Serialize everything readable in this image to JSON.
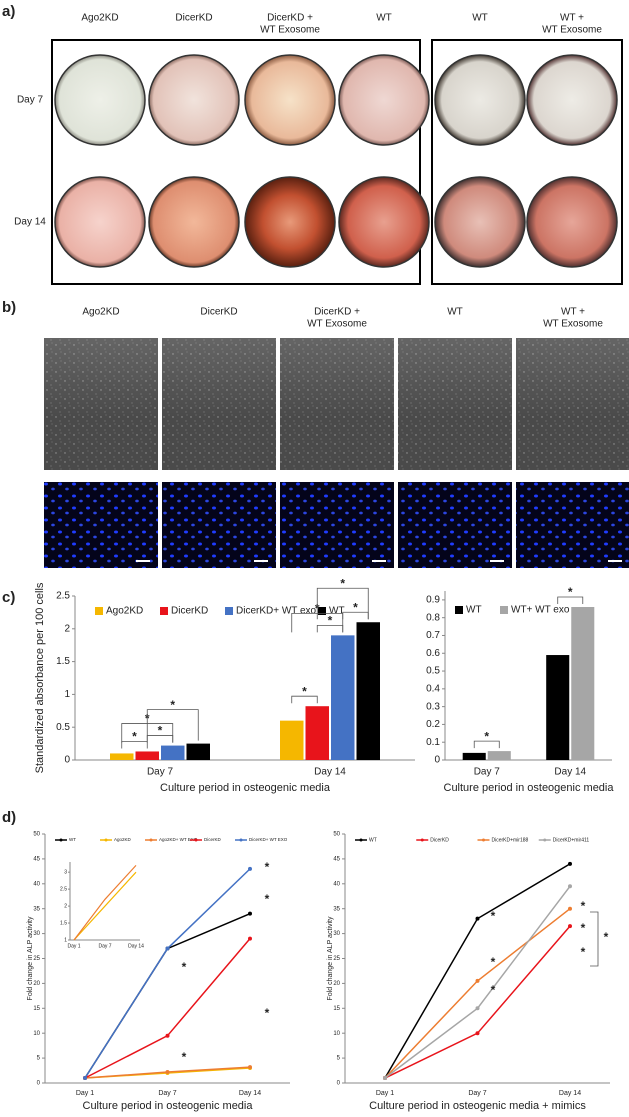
{
  "figure": {
    "a": {
      "label": "a)",
      "groups": [
        {
          "columns": [
            [
              "Ago2KD"
            ],
            [
              "DicerKD"
            ],
            [
              "DicerKD +",
              "WT Exosome"
            ],
            [
              "WT"
            ]
          ]
        },
        {
          "columns": [
            [
              "WT"
            ],
            [
              "WT +",
              "WT Exosome"
            ]
          ]
        }
      ],
      "rows": [
        "Day 7",
        "Day 14"
      ]
    },
    "b": {
      "label": "b)",
      "columns": [
        [
          "Ago2KD"
        ],
        [
          "DicerKD"
        ],
        [
          "DicerKD +",
          "WT Exosome"
        ],
        [
          "WT"
        ],
        [
          "WT +",
          "WT Exosome"
        ]
      ]
    },
    "c": {
      "label": "c)"
    },
    "d": {
      "label": "d)"
    }
  },
  "chart_data": [
    {
      "type": "bar",
      "ylabel": "Standardized absorbance per 100 cells",
      "xlabel": "Culture period in osteogenic media",
      "categories": [
        "Day 7",
        "Day 14"
      ],
      "series": [
        {
          "name": "Ago2KD",
          "color": "#f5b700",
          "values": [
            0.1,
            0.6
          ]
        },
        {
          "name": "DicerKD",
          "color": "#e8141b",
          "values": [
            0.13,
            0.82
          ]
        },
        {
          "name": "DicerKD+ WT exo",
          "color": "#4472c4",
          "values": [
            0.22,
            1.9
          ]
        },
        {
          "name": "WT",
          "color": "#000000",
          "values": [
            0.25,
            2.1
          ]
        }
      ],
      "ylim": [
        0,
        2.5
      ],
      "yticks": [
        0,
        0.5,
        1,
        1.5,
        2,
        2.5
      ],
      "significance": "*"
    },
    {
      "type": "bar",
      "xlabel": "Culture period in osteogenic media",
      "categories": [
        "Day 7",
        "Day 14"
      ],
      "series": [
        {
          "name": "WT",
          "color": "#000000",
          "values": [
            0.04,
            0.59
          ]
        },
        {
          "name": "WT+ WT exo",
          "color": "#a6a6a6",
          "values": [
            0.05,
            0.86
          ]
        }
      ],
      "ylim": [
        0,
        0.95
      ],
      "yticks": [
        0,
        0.1,
        0.2,
        0.3,
        0.4,
        0.5,
        0.6,
        0.7,
        0.8,
        0.9
      ],
      "significance": "*"
    },
    {
      "type": "line",
      "ylabel": "Fold change in ALP activity",
      "xlabel": "Culture period in osteogenic media",
      "categories": [
        "Day 1",
        "Day 7",
        "Day 14"
      ],
      "series": [
        {
          "name": "WT",
          "color": "#000000",
          "values": [
            1,
            27,
            34
          ]
        },
        {
          "name": "Ago2KD",
          "color": "#f5b700",
          "values": [
            1,
            2,
            3
          ]
        },
        {
          "name": "Ago2KD+ WT EXO",
          "color": "#ed7d31",
          "values": [
            1,
            2.2,
            3.2
          ]
        },
        {
          "name": "DicerKD",
          "color": "#e8141b",
          "values": [
            1,
            9.5,
            29
          ]
        },
        {
          "name": "DicerKD+ WT EXO",
          "color": "#4472c4",
          "values": [
            1,
            27,
            43
          ]
        }
      ],
      "ylim": [
        0,
        50
      ],
      "yticks": [
        0,
        5,
        10,
        15,
        20,
        25,
        30,
        35,
        40,
        45,
        50
      ],
      "inset": {
        "ylim": [
          1,
          3.3
        ],
        "yticks": [
          1,
          1.5,
          2,
          2.5,
          3
        ]
      },
      "significance": "*"
    },
    {
      "type": "line",
      "ylabel": "Fold change in ALP activity",
      "xlabel": "Culture period in osteogenic media + mimics",
      "categories": [
        "Day 1",
        "Day 7",
        "Day 14"
      ],
      "series": [
        {
          "name": "WT",
          "color": "#000000",
          "values": [
            1,
            33,
            44
          ]
        },
        {
          "name": "DicerKD",
          "color": "#e8141b",
          "values": [
            1,
            10,
            31.5
          ]
        },
        {
          "name": "DicerKD+mir188",
          "color": "#ed7d31",
          "values": [
            1,
            20.5,
            35
          ]
        },
        {
          "name": "DicerKD+mir411",
          "color": "#a6a6a6",
          "values": [
            1,
            15,
            39.5
          ]
        }
      ],
      "ylim": [
        0,
        50
      ],
      "yticks": [
        0,
        5,
        10,
        15,
        20,
        25,
        30,
        35,
        40,
        45,
        50
      ],
      "significance": "*"
    }
  ]
}
